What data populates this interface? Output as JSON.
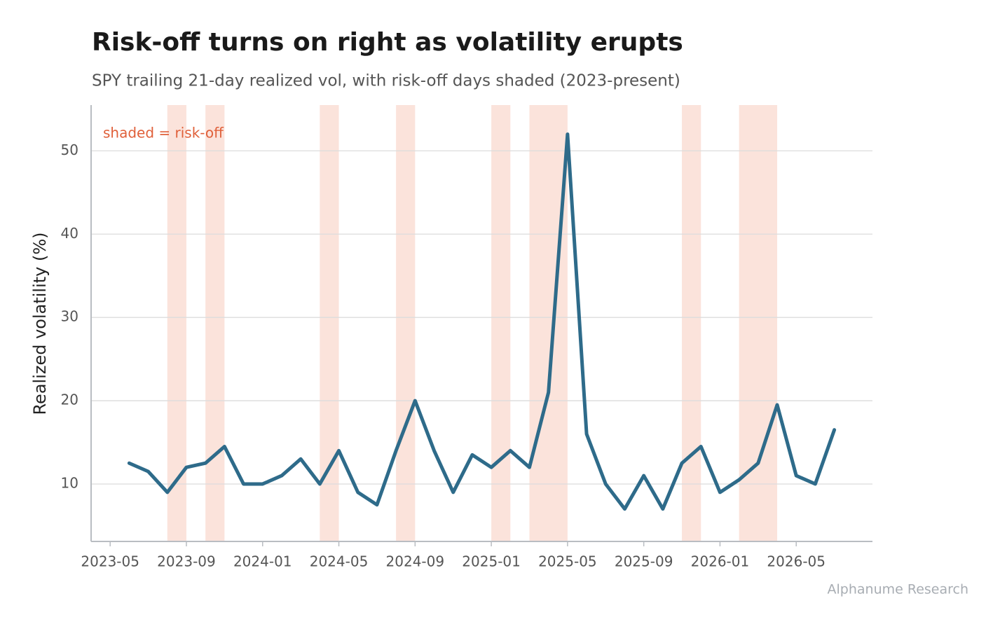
{
  "chart_data": {
    "type": "line",
    "title": "Risk-off turns on right as volatility erupts",
    "subtitle": "SPY trailing 21-day realized vol, with risk-off days shaded (2023-present)",
    "ylabel": "Realized volatility (%)",
    "annotation": "shaded = risk-off",
    "source": "Alphanume Research",
    "x": [
      "2023-06",
      "2023-07",
      "2023-08",
      "2023-09",
      "2023-10",
      "2023-11",
      "2023-12",
      "2024-01",
      "2024-02",
      "2024-03",
      "2024-04",
      "2024-05",
      "2024-06",
      "2024-07",
      "2024-08",
      "2024-09",
      "2024-10",
      "2024-11",
      "2024-12",
      "2025-01",
      "2025-02",
      "2025-03",
      "2025-04",
      "2025-05",
      "2025-06",
      "2025-07",
      "2025-08",
      "2025-09",
      "2025-10",
      "2025-11",
      "2025-12",
      "2026-01",
      "2026-02",
      "2026-03",
      "2026-04",
      "2026-05",
      "2026-06",
      "2026-07"
    ],
    "series": [
      {
        "name": "Realized volatility",
        "color": "#2e6b8a",
        "values": [
          12.5,
          11.5,
          9,
          12,
          12.5,
          14.5,
          10,
          10,
          11,
          13,
          10,
          14,
          9,
          7.5,
          14,
          20,
          14,
          9,
          13.5,
          12,
          14,
          12,
          21,
          52,
          16,
          10,
          7,
          11,
          7,
          12.5,
          14.5,
          9,
          10.5,
          12.5,
          19.5,
          11,
          10,
          16.5
        ]
      }
    ],
    "shaded": [
      [
        "2023-08",
        "2023-09"
      ],
      [
        "2023-10",
        "2023-11"
      ],
      [
        "2024-04",
        "2024-05"
      ],
      [
        "2024-08",
        "2024-09"
      ],
      [
        "2025-01",
        "2025-02"
      ],
      [
        "2025-03",
        "2025-05"
      ],
      [
        "2025-11",
        "2025-12"
      ],
      [
        "2026-02",
        "2026-04"
      ]
    ],
    "shade_color": "#fbe3db",
    "annotation_color": "#e0603a",
    "xlim": [
      "2023-04",
      "2026-09"
    ],
    "xticks": [
      "2023-05",
      "2023-09",
      "2024-01",
      "2024-05",
      "2024-09",
      "2025-01",
      "2025-05",
      "2025-09",
      "2026-01",
      "2026-05"
    ],
    "ylim": [
      3.1,
      55.5
    ],
    "yticks": [
      10,
      20,
      30,
      40,
      50
    ],
    "grid": true
  }
}
